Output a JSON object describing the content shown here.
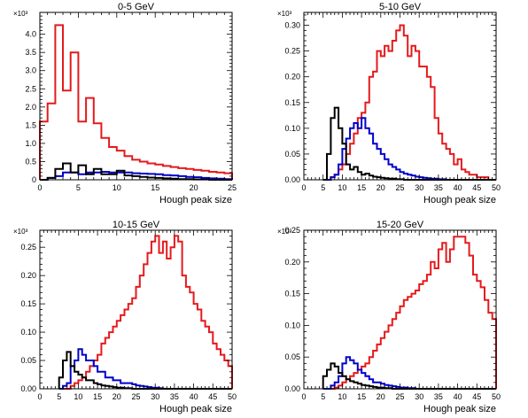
{
  "figure": {
    "background": "#ffffff"
  },
  "chart_data": [
    {
      "type": "line",
      "style": "step-histogram",
      "title": "0-5 GeV",
      "xlabel": "Hough peak size",
      "ylabel": "",
      "y_multiplier_label": "×10³",
      "xlim": [
        0,
        25
      ],
      "ylim": [
        0,
        4.6
      ],
      "x_ticks": [
        0,
        5,
        10,
        15,
        20,
        25
      ],
      "y_ticks": [
        0,
        0.5,
        1.0,
        1.5,
        2.0,
        2.5,
        3.0,
        3.5,
        4.0
      ],
      "y_tick_labels": [
        "0",
        "0.5",
        "1.0",
        "1.5",
        "2.0",
        "2.5",
        "3.0",
        "3.5",
        "4.0"
      ],
      "bin_edges": [
        0,
        1,
        2,
        3,
        4,
        5,
        6,
        7,
        8,
        9,
        10,
        11,
        12,
        13,
        14,
        15,
        16,
        17,
        18,
        19,
        20,
        21,
        22,
        23,
        24,
        25
      ],
      "series": [
        {
          "color": "#e41a1c",
          "values": [
            1.6,
            2.1,
            4.25,
            2.45,
            3.5,
            1.6,
            2.25,
            1.55,
            1.15,
            0.9,
            0.8,
            0.65,
            0.55,
            0.5,
            0.45,
            0.42,
            0.38,
            0.35,
            0.32,
            0.3,
            0.27,
            0.25,
            0.22,
            0.2,
            0.18
          ]
        },
        {
          "color": "#0000cc",
          "values": [
            0,
            0.05,
            0.1,
            0.2,
            0.2,
            0.15,
            0.2,
            0.2,
            0.22,
            0.2,
            0.2,
            0.2,
            0.18,
            0.17,
            0.16,
            0.15,
            0.13,
            0.12,
            0.1,
            0.08,
            0.07,
            0.05,
            0.04,
            0.03,
            0.02
          ]
        },
        {
          "color": "#000000",
          "values": [
            0,
            0.05,
            0.3,
            0.45,
            0.2,
            0.4,
            0.15,
            0.3,
            0.15,
            0.15,
            0.25,
            0.12,
            0.1,
            0.08,
            0.06,
            0.05,
            0.04,
            0.03,
            0.02,
            0.02,
            0.01,
            0.01,
            0,
            0,
            0
          ]
        }
      ]
    },
    {
      "type": "line",
      "style": "step-histogram",
      "title": "5-10 GeV",
      "xlabel": "Hough peak size",
      "ylabel": "",
      "y_multiplier_label": "×10³",
      "xlim": [
        0,
        50
      ],
      "ylim": [
        0,
        0.325
      ],
      "x_ticks": [
        0,
        5,
        10,
        15,
        20,
        25,
        30,
        35,
        40,
        45,
        50
      ],
      "y_ticks": [
        0,
        0.05,
        0.1,
        0.15,
        0.2,
        0.25,
        0.3
      ],
      "y_tick_labels": [
        "0.00",
        "0.05",
        "0.10",
        "0.15",
        "0.20",
        "0.25",
        "0.30"
      ],
      "bin_edges": [
        5,
        6,
        7,
        8,
        9,
        10,
        11,
        12,
        13,
        14,
        15,
        16,
        17,
        18,
        19,
        20,
        21,
        22,
        23,
        24,
        25,
        26,
        27,
        28,
        29,
        30,
        31,
        32,
        33,
        34,
        35,
        36,
        37,
        38,
        39,
        40,
        41,
        42,
        43,
        44,
        45,
        46,
        47,
        48,
        49,
        50
      ],
      "series": [
        {
          "color": "#e41a1c",
          "values": [
            0,
            0,
            0.005,
            0.01,
            0.02,
            0.03,
            0.05,
            0.07,
            0.09,
            0.12,
            0.13,
            0.15,
            0.2,
            0.21,
            0.25,
            0.24,
            0.26,
            0.25,
            0.27,
            0.29,
            0.3,
            0.28,
            0.24,
            0.26,
            0.25,
            0.22,
            0.22,
            0.2,
            0.18,
            0.12,
            0.09,
            0.07,
            0.06,
            0.05,
            0.03,
            0.04,
            0.02,
            0.015,
            0.01,
            0.01,
            0.005,
            0.005,
            0.005,
            0,
            0
          ]
        },
        {
          "color": "#0000cc",
          "values": [
            0,
            0,
            0.005,
            0.01,
            0.03,
            0.06,
            0.08,
            0.1,
            0.11,
            0.1,
            0.12,
            0.1,
            0.09,
            0.07,
            0.06,
            0.05,
            0.04,
            0.03,
            0.025,
            0.02,
            0.015,
            0.012,
            0.01,
            0.008,
            0.006,
            0.005,
            0.004,
            0.003,
            0.002,
            0.002,
            0.001,
            0.001,
            0,
            0,
            0,
            0,
            0,
            0,
            0,
            0,
            0,
            0,
            0,
            0,
            0
          ]
        },
        {
          "color": "#000000",
          "values": [
            0,
            0.05,
            0.12,
            0.14,
            0.1,
            0.07,
            0.03,
            0.02,
            0.025,
            0.015,
            0.01,
            0.012,
            0.008,
            0.006,
            0.005,
            0.004,
            0.003,
            0.002,
            0.002,
            0.001,
            0.001,
            0,
            0,
            0,
            0,
            0,
            0,
            0,
            0,
            0,
            0,
            0,
            0,
            0,
            0,
            0,
            0,
            0,
            0,
            0,
            0,
            0,
            0,
            0,
            0
          ]
        }
      ]
    },
    {
      "type": "line",
      "style": "step-histogram",
      "title": "10-15 GeV",
      "xlabel": "Hough peak size",
      "ylabel": "",
      "y_multiplier_label": "×10³",
      "xlim": [
        0,
        50
      ],
      "ylim": [
        0,
        0.28
      ],
      "x_ticks": [
        0,
        5,
        10,
        15,
        20,
        25,
        30,
        35,
        40,
        45,
        50
      ],
      "y_ticks": [
        0,
        0.05,
        0.1,
        0.15,
        0.2,
        0.25
      ],
      "y_tick_labels": [
        "0.00",
        "0.05",
        "0.10",
        "0.15",
        "0.20",
        "0.25"
      ],
      "bin_edges": [
        5,
        6,
        7,
        8,
        9,
        10,
        11,
        12,
        13,
        14,
        15,
        16,
        17,
        18,
        19,
        20,
        21,
        22,
        23,
        24,
        25,
        26,
        27,
        28,
        29,
        30,
        31,
        32,
        33,
        34,
        35,
        36,
        37,
        38,
        39,
        40,
        41,
        42,
        43,
        44,
        45,
        46,
        47,
        48,
        49,
        50
      ],
      "series": [
        {
          "color": "#e41a1c",
          "values": [
            0,
            0,
            0,
            0.005,
            0.01,
            0.015,
            0.02,
            0.03,
            0.04,
            0.05,
            0.06,
            0.08,
            0.09,
            0.1,
            0.11,
            0.12,
            0.13,
            0.14,
            0.15,
            0.16,
            0.18,
            0.2,
            0.22,
            0.24,
            0.26,
            0.27,
            0.24,
            0.26,
            0.23,
            0.25,
            0.27,
            0.26,
            0.2,
            0.18,
            0.17,
            0.15,
            0.14,
            0.12,
            0.11,
            0.1,
            0.08,
            0.07,
            0.06,
            0.05,
            0.04
          ]
        },
        {
          "color": "#0000cc",
          "values": [
            0,
            0.005,
            0.01,
            0.04,
            0.05,
            0.07,
            0.06,
            0.05,
            0.05,
            0.04,
            0.03,
            0.03,
            0.02,
            0.02,
            0.015,
            0.015,
            0.01,
            0.01,
            0.01,
            0.008,
            0.006,
            0.005,
            0.004,
            0.003,
            0.002,
            0.002,
            0.001,
            0,
            0,
            0,
            0,
            0,
            0,
            0,
            0,
            0,
            0,
            0,
            0,
            0,
            0,
            0,
            0,
            0,
            0
          ]
        },
        {
          "color": "#000000",
          "values": [
            0.02,
            0.05,
            0.065,
            0.04,
            0.03,
            0.025,
            0.02,
            0.015,
            0.015,
            0.01,
            0.008,
            0.006,
            0.005,
            0.004,
            0.003,
            0.002,
            0.002,
            0.001,
            0.001,
            0,
            0,
            0,
            0,
            0,
            0,
            0,
            0,
            0,
            0,
            0,
            0,
            0,
            0,
            0,
            0,
            0,
            0,
            0,
            0,
            0,
            0,
            0,
            0,
            0,
            0
          ]
        }
      ]
    },
    {
      "type": "line",
      "style": "step-histogram",
      "title": "15-20 GeV",
      "xlabel": "Hough peak size",
      "ylabel": "",
      "y_multiplier_label": "×10³",
      "xlim": [
        0,
        50
      ],
      "ylim": [
        0,
        0.25
      ],
      "x_ticks": [
        0,
        5,
        10,
        15,
        20,
        25,
        30,
        35,
        40,
        45,
        50
      ],
      "y_ticks": [
        0,
        0.05,
        0.1,
        0.15,
        0.2,
        0.25
      ],
      "y_tick_labels": [
        "0.00",
        "0.05",
        "0.10",
        "0.15",
        "0.20",
        "0.25"
      ],
      "bin_edges": [
        5,
        6,
        7,
        8,
        9,
        10,
        11,
        12,
        13,
        14,
        15,
        16,
        17,
        18,
        19,
        20,
        21,
        22,
        23,
        24,
        25,
        26,
        27,
        28,
        29,
        30,
        31,
        32,
        33,
        34,
        35,
        36,
        37,
        38,
        39,
        40,
        41,
        42,
        43,
        44,
        45,
        46,
        47,
        48,
        49,
        50
      ],
      "series": [
        {
          "color": "#e41a1c",
          "values": [
            0,
            0,
            0,
            0.002,
            0.005,
            0.01,
            0.015,
            0.02,
            0.025,
            0.03,
            0.035,
            0.04,
            0.05,
            0.06,
            0.07,
            0.08,
            0.09,
            0.1,
            0.11,
            0.12,
            0.13,
            0.14,
            0.145,
            0.15,
            0.155,
            0.165,
            0.17,
            0.18,
            0.2,
            0.19,
            0.22,
            0.23,
            0.2,
            0.22,
            0.24,
            0.24,
            0.24,
            0.23,
            0.21,
            0.18,
            0.17,
            0.16,
            0.14,
            0.12,
            0.11
          ]
        },
        {
          "color": "#0000cc",
          "values": [
            0,
            0,
            0.005,
            0.01,
            0.02,
            0.04,
            0.05,
            0.045,
            0.04,
            0.03,
            0.025,
            0.02,
            0.015,
            0.01,
            0.01,
            0.008,
            0.006,
            0.005,
            0.004,
            0.003,
            0.002,
            0.002,
            0.001,
            0.001,
            0,
            0,
            0,
            0,
            0,
            0,
            0,
            0,
            0,
            0,
            0,
            0,
            0,
            0,
            0,
            0,
            0,
            0,
            0,
            0,
            0
          ]
        },
        {
          "color": "#000000",
          "values": [
            0.02,
            0.03,
            0.04,
            0.035,
            0.025,
            0.02,
            0.015,
            0.012,
            0.01,
            0.008,
            0.006,
            0.005,
            0.004,
            0.003,
            0.002,
            0.002,
            0.001,
            0.001,
            0,
            0,
            0,
            0,
            0,
            0,
            0,
            0,
            0,
            0,
            0,
            0,
            0,
            0,
            0,
            0,
            0,
            0,
            0,
            0,
            0,
            0,
            0,
            0,
            0,
            0,
            0
          ]
        }
      ]
    }
  ]
}
